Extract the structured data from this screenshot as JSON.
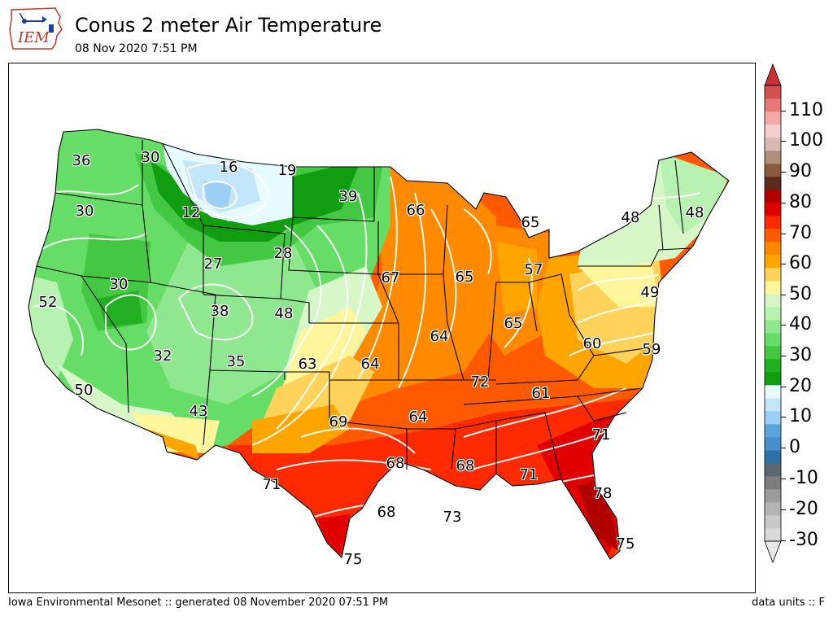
{
  "header": {
    "title": "Conus 2 meter Air Temperature",
    "subtitle": "08 Nov 2020 7:51 PM",
    "logo_text": "IEM"
  },
  "footer": {
    "left": "Iowa Environmental Mesonet :: generated 08 November 2020 07:51 PM",
    "right": "data units :: F"
  },
  "map_labels": [
    {
      "name": "label-36",
      "text": "36"
    },
    {
      "name": "label-30-nw",
      "text": "30"
    },
    {
      "name": "label-16",
      "text": "16"
    },
    {
      "name": "label-19",
      "text": "19"
    },
    {
      "name": "label-39",
      "text": "39"
    },
    {
      "name": "label-12",
      "text": "12"
    },
    {
      "name": "label-30-wa",
      "text": "30"
    },
    {
      "name": "label-66",
      "text": "66"
    },
    {
      "name": "label-65-mi",
      "text": "65"
    },
    {
      "name": "label-48-ny",
      "text": "48"
    },
    {
      "name": "label-48-me",
      "text": "48"
    },
    {
      "name": "label-27",
      "text": "27"
    },
    {
      "name": "label-28",
      "text": "28"
    },
    {
      "name": "label-67",
      "text": "67"
    },
    {
      "name": "label-65-il",
      "text": "65"
    },
    {
      "name": "label-57",
      "text": "57"
    },
    {
      "name": "label-30-nv",
      "text": "30"
    },
    {
      "name": "label-52",
      "text": "52"
    },
    {
      "name": "label-38",
      "text": "38"
    },
    {
      "name": "label-48-ne",
      "text": "48"
    },
    {
      "name": "label-49",
      "text": "49"
    },
    {
      "name": "label-64-mo",
      "text": "64"
    },
    {
      "name": "label-65-in",
      "text": "65"
    },
    {
      "name": "label-60",
      "text": "60"
    },
    {
      "name": "label-32",
      "text": "32"
    },
    {
      "name": "label-35",
      "text": "35"
    },
    {
      "name": "label-63",
      "text": "63"
    },
    {
      "name": "label-64-ks",
      "text": "64"
    },
    {
      "name": "label-59",
      "text": "59"
    },
    {
      "name": "label-72",
      "text": "72"
    },
    {
      "name": "label-50",
      "text": "50"
    },
    {
      "name": "label-61",
      "text": "61"
    },
    {
      "name": "label-43",
      "text": "43"
    },
    {
      "name": "label-69",
      "text": "69"
    },
    {
      "name": "label-64-ar",
      "text": "64"
    },
    {
      "name": "label-71-nc",
      "text": "71"
    },
    {
      "name": "label-68-tx",
      "text": "68"
    },
    {
      "name": "label-68-ms",
      "text": "68"
    },
    {
      "name": "label-71-tx",
      "text": "71"
    },
    {
      "name": "label-71-ga",
      "text": "71"
    },
    {
      "name": "label-78",
      "text": "78"
    },
    {
      "name": "label-68-gulf",
      "text": "68"
    },
    {
      "name": "label-73",
      "text": "73"
    },
    {
      "name": "label-75-fl",
      "text": "75"
    },
    {
      "name": "label-75-tx",
      "text": "75"
    }
  ],
  "colorbar": {
    "unit": "F",
    "tick_labels": [
      "110",
      "100",
      "90",
      "80",
      "70",
      "60",
      "50",
      "40",
      "30",
      "20",
      "10",
      "0",
      "-10",
      "-20",
      "-30"
    ],
    "bins": [
      {
        "min": -35,
        "color": "#d9d9d9"
      },
      {
        "min": -30,
        "color": "#c8c8c8"
      },
      {
        "min": -25,
        "color": "#b4b4b4"
      },
      {
        "min": -20,
        "color": "#9c9c9c"
      },
      {
        "min": -15,
        "color": "#7c7c7c"
      },
      {
        "min": -10,
        "color": "#5c6670"
      },
      {
        "min": -5,
        "color": "#2f6fa8"
      },
      {
        "min": 0,
        "color": "#4a8fcd"
      },
      {
        "min": 5,
        "color": "#5aa6dc"
      },
      {
        "min": 10,
        "color": "#9bcff5"
      },
      {
        "min": 15,
        "color": "#c4e6fa"
      },
      {
        "min": 20,
        "color": "#e6fbff"
      },
      {
        "min": 25,
        "color": "#109e10"
      },
      {
        "min": 30,
        "color": "#22b022"
      },
      {
        "min": 35,
        "color": "#44c844"
      },
      {
        "min": 40,
        "color": "#66dd66"
      },
      {
        "min": 45,
        "color": "#8fe88f"
      },
      {
        "min": 50,
        "color": "#b8f2b0"
      },
      {
        "min": 55,
        "color": "#d7f7c8"
      },
      {
        "min": 60,
        "color": "#fff59a"
      },
      {
        "min": 65,
        "color": "#ffd25a"
      },
      {
        "min": 70,
        "color": "#ffa500"
      },
      {
        "min": 75,
        "color": "#ff8a00"
      },
      {
        "min": 80,
        "color": "#ff5a00"
      },
      {
        "min": 85,
        "color": "#ff2a00"
      },
      {
        "min": 90,
        "color": "#e00000"
      },
      {
        "min": 95,
        "color": "#b00000"
      },
      {
        "min": 100,
        "color": "#5a2a1a"
      },
      {
        "min": 105,
        "color": "#8a5a3a"
      },
      {
        "min": 110,
        "color": "#b08f7a"
      },
      {
        "min": 115,
        "color": "#d8b8b0"
      },
      {
        "min": 120,
        "color": "#f3d0d0"
      },
      {
        "min": 125,
        "color": "#f4a8a8"
      },
      {
        "min": 130,
        "color": "#e87878"
      },
      {
        "min": 135,
        "color": "#d25050"
      }
    ],
    "under_color": "#e8e8e8",
    "over_color": "#c83232"
  }
}
